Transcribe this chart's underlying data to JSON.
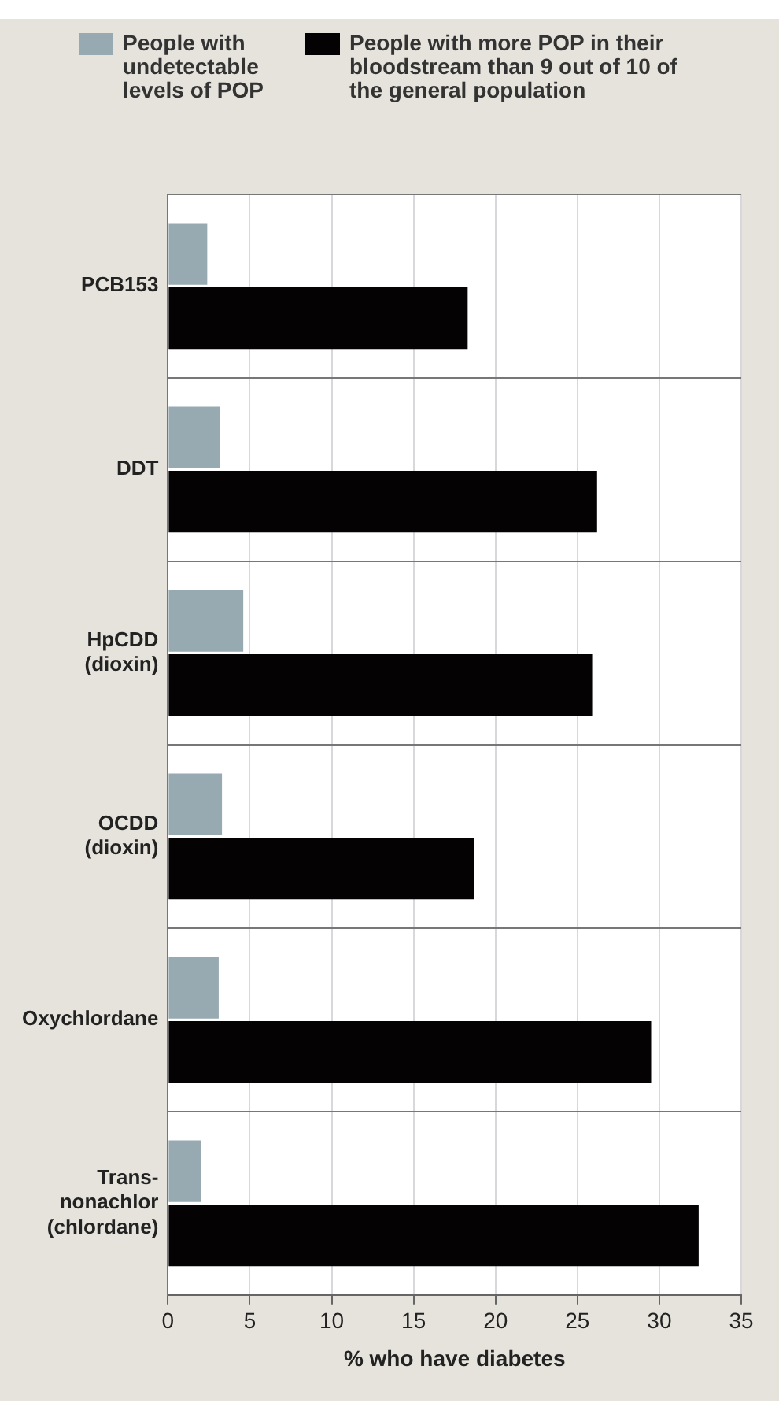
{
  "chart_data": {
    "type": "bar",
    "orientation": "horizontal",
    "xlabel": "% who have diabetes",
    "categories": [
      "PCB153",
      "DDT",
      "HpCDD\n(dioxin)",
      "OCDD\n(dioxin)",
      "Oxychlordane",
      "Trans-\nnonachlor\n(chlordane)"
    ],
    "series": [
      {
        "name": "People with undetectable levels of POP",
        "color": "#97a9b1",
        "values": [
          2.4,
          3.2,
          4.6,
          3.3,
          3.1,
          2.0
        ]
      },
      {
        "name": "People with more POP in their bloodstream than 9 out of 10 of the general population",
        "color": "#050203",
        "values": [
          18.3,
          26.2,
          25.9,
          18.7,
          29.5,
          32.4
        ]
      }
    ],
    "xlim": [
      0,
      35
    ],
    "xticks": [
      0,
      5,
      10,
      15,
      20,
      25,
      30,
      35
    ],
    "grid": true,
    "legend": "top"
  }
}
